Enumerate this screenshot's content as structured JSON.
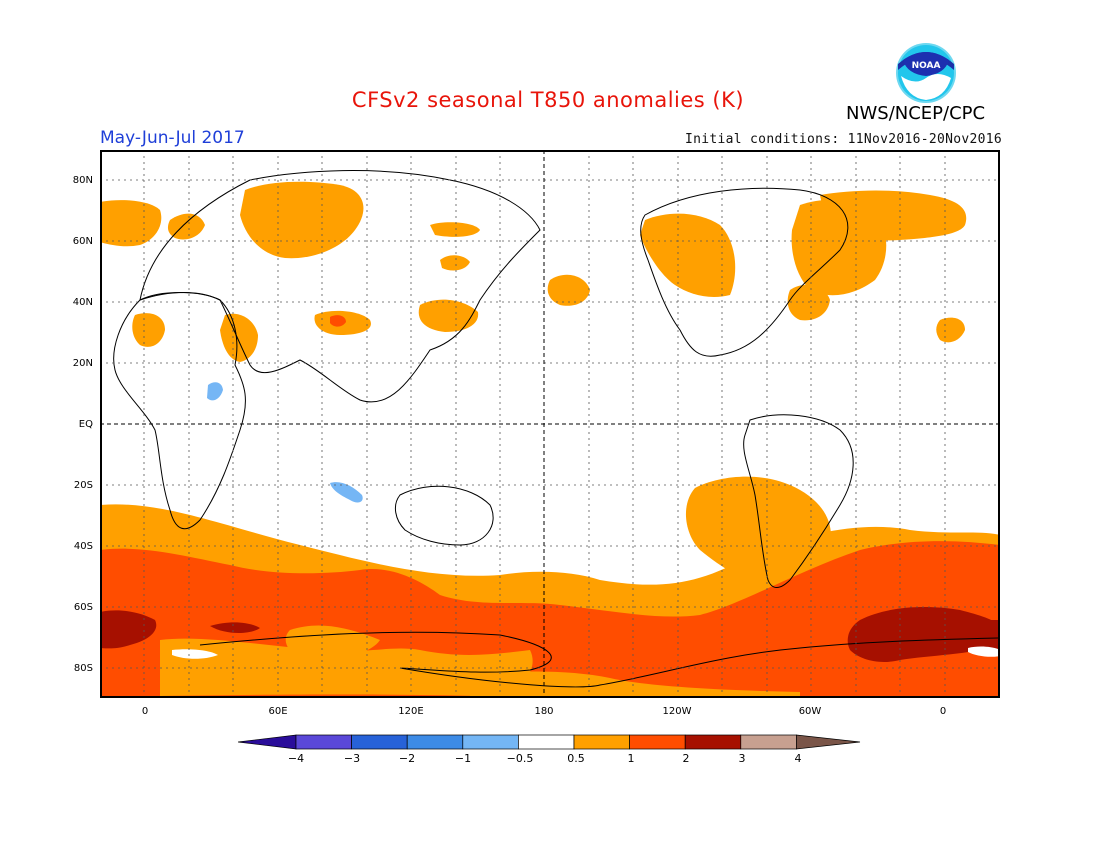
{
  "header": {
    "title": "CFSv2 seasonal T850 anomalies (K)",
    "season": "May-Jun-Jul 2017",
    "initial_conditions": "Initial conditions: 11Nov2016-20Nov2016",
    "agency": "NWS/NCEP/CPC",
    "logo_text": "NOAA"
  },
  "map": {
    "lat_labels": [
      "80N",
      "60N",
      "40N",
      "20N",
      "EQ",
      "20S",
      "40S",
      "60S",
      "80S"
    ],
    "lon_labels": [
      "0",
      "60E",
      "120E",
      "180",
      "120W",
      "60W",
      "0"
    ],
    "colors": {
      "anom_0_5_1": "#ffa000",
      "anom_1_2": "#ff4d00",
      "anom_2_3": "#a61000",
      "anom_3_4": "#c79a8a",
      "anom_neg_1_neg_0_5": "#75b6f5",
      "anom_max": "#e83020"
    }
  },
  "colorbar": {
    "labels": [
      "−4",
      "−3",
      "−2",
      "−1",
      "−0.5",
      "0.5",
      "1",
      "2",
      "3",
      "4"
    ],
    "colors": [
      "#2a0d9a",
      "#5a48d8",
      "#2762d8",
      "#3d8be6",
      "#74b6f5",
      "#ffffff",
      "#ffa000",
      "#ff4d00",
      "#a61000",
      "#c7a090",
      "#7a5548"
    ]
  }
}
